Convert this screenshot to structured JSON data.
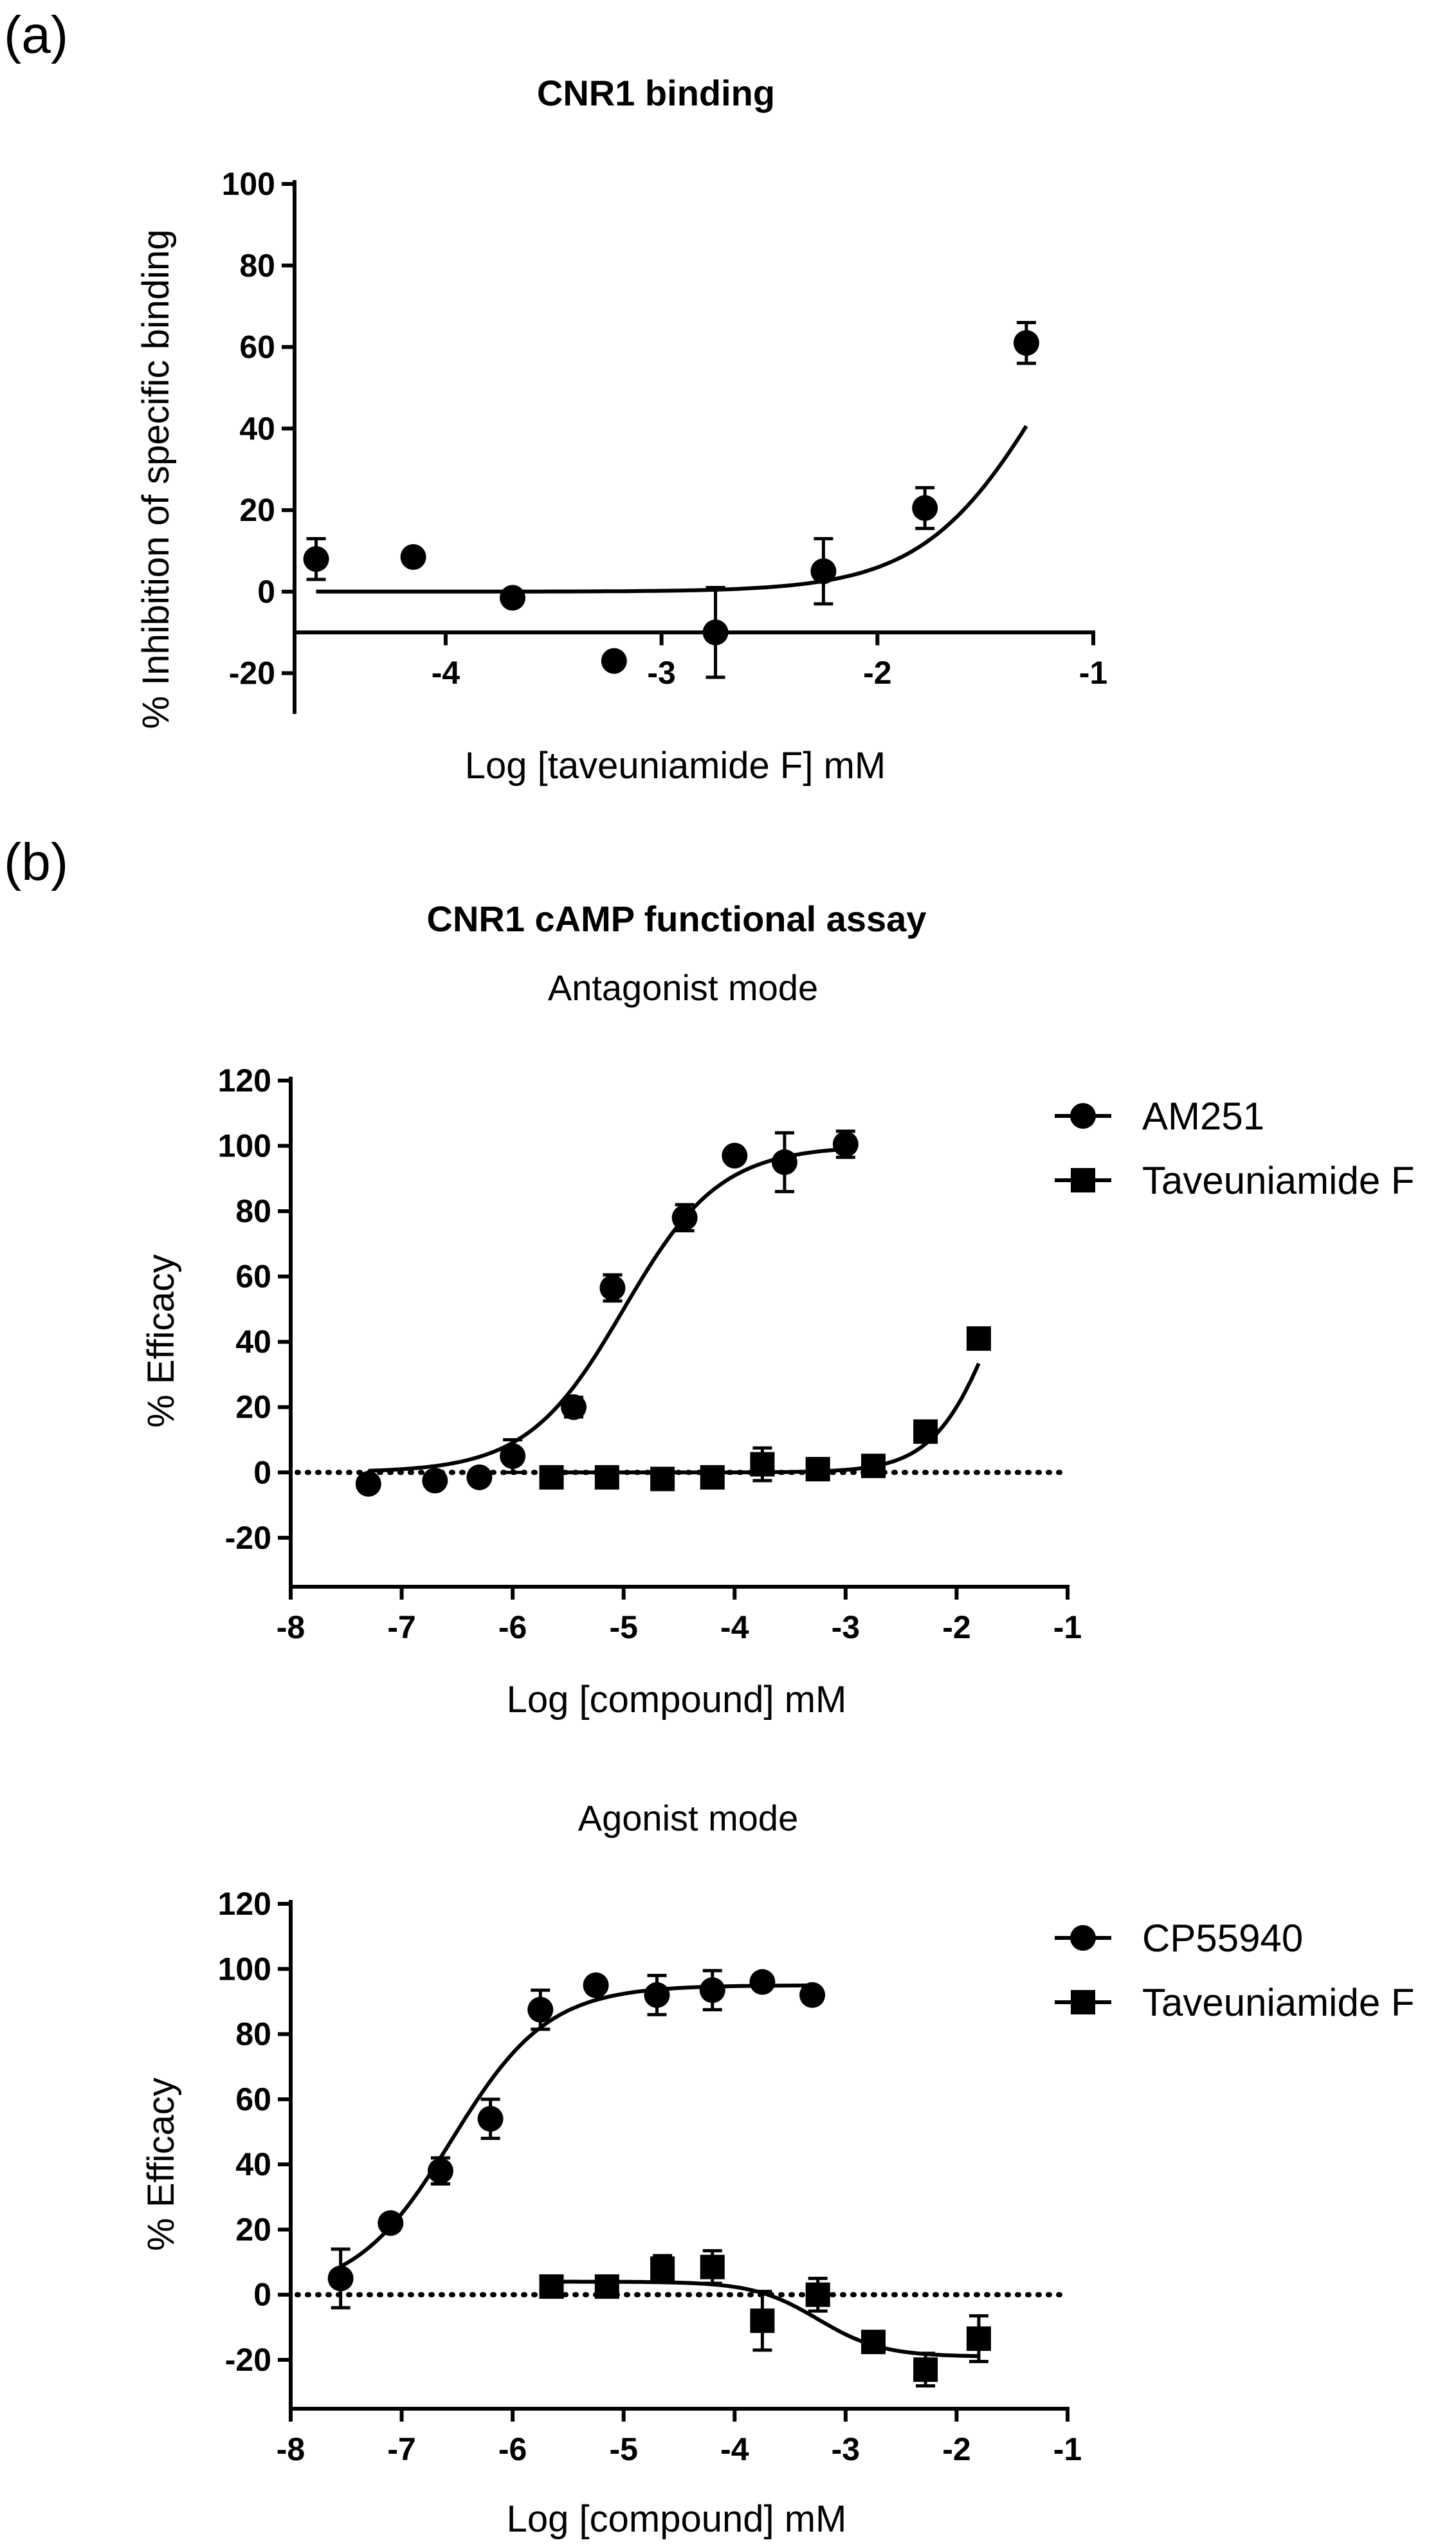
{
  "panel_labels": {
    "a": "(a)",
    "b": "(b)"
  },
  "section_b": {
    "title": "CNR1 cAMP functional assay"
  },
  "chart_data": [
    {
      "id": "binding",
      "type": "scatter",
      "title": "CNR1 binding",
      "subtitle": "",
      "xlabel": "Log [taveuniamide F] mM",
      "ylabel": "% Inhibition of specific binding",
      "xlim": [
        -4.7,
        -1.0
      ],
      "ylim": [
        -30,
        100
      ],
      "xticks": [
        -4,
        -3,
        -2,
        -1
      ],
      "yticks": [
        -20,
        0,
        20,
        40,
        60,
        80,
        100
      ],
      "xaxis_at_y": -10,
      "zero_line": false,
      "legend": [],
      "series": [
        {
          "name": "taveuniamide F",
          "marker": "circle",
          "x": [
            -4.6,
            -4.15,
            -3.69,
            -3.22,
            -2.75,
            -2.25,
            -1.78,
            -1.31
          ],
          "y": [
            8,
            8.5,
            -1.5,
            -17,
            -10,
            5,
            20.5,
            61
          ],
          "err": [
            5,
            0,
            0,
            0,
            11,
            8,
            5,
            5
          ],
          "fit": {
            "bottom": 0,
            "top": 100,
            "logec50": -1.2,
            "hill": 1.5,
            "x_range": [
              -4.6,
              -1.31
            ]
          }
        }
      ]
    },
    {
      "id": "antagonist",
      "type": "scatter",
      "title": "",
      "subtitle": "Antagonist mode",
      "xlabel": "Log [compound] mM",
      "ylabel": "% Efficacy",
      "xlim": [
        -8,
        -1
      ],
      "ylim": [
        -35,
        120
      ],
      "xticks": [
        -8,
        -7,
        -6,
        -5,
        -4,
        -3,
        -2,
        -1
      ],
      "yticks": [
        -20,
        0,
        20,
        40,
        60,
        80,
        100,
        120
      ],
      "xaxis_at_y": -35,
      "zero_line": true,
      "legend": [
        "AM251",
        "Taveuniamide F"
      ],
      "series": [
        {
          "name": "AM251",
          "marker": "circle",
          "x": [
            -7.3,
            -6.7,
            -6.3,
            -6.0,
            -5.45,
            -5.1,
            -4.45,
            -4.0,
            -3.55,
            -3.0
          ],
          "y": [
            -3.5,
            -2.5,
            -1.5,
            5,
            20,
            56.5,
            78,
            97,
            95,
            100.5
          ],
          "err": [
            0,
            0,
            0,
            5,
            3,
            4,
            4,
            0,
            9,
            4
          ],
          "fit": {
            "bottom": 0,
            "top": 100,
            "logec50": -5.0,
            "hill": 1.0,
            "x_range": [
              -7.3,
              -3.0
            ]
          }
        },
        {
          "name": "Taveuniamide F",
          "marker": "square",
          "x": [
            -5.65,
            -5.15,
            -4.65,
            -4.2,
            -3.75,
            -3.25,
            -2.75,
            -2.28,
            -1.8
          ],
          "y": [
            -1.5,
            -1.5,
            -2,
            -1.5,
            2.5,
            1,
            2,
            12.5,
            41
          ],
          "err": [
            0,
            0,
            0,
            3,
            5,
            0,
            3,
            0,
            0
          ],
          "fit": {
            "bottom": 0,
            "top": 100,
            "logec50": -1.6,
            "hill": 1.5,
            "x_range": [
              -5.65,
              -1.8
            ]
          }
        }
      ]
    },
    {
      "id": "agonist",
      "type": "scatter",
      "title": "",
      "subtitle": "Agonist mode",
      "xlabel": "Log [compound] mM",
      "ylabel": "% Efficacy",
      "xlim": [
        -8,
        -1
      ],
      "ylim": [
        -35,
        120
      ],
      "xticks": [
        -8,
        -7,
        -6,
        -5,
        -4,
        -3,
        -2,
        -1
      ],
      "yticks": [
        -20,
        0,
        20,
        40,
        60,
        80,
        100,
        120
      ],
      "xaxis_at_y": -35,
      "zero_line": true,
      "legend": [
        "CP55940",
        "Taveuniamide F"
      ],
      "series": [
        {
          "name": "CP55940",
          "marker": "circle",
          "x": [
            -7.55,
            -7.1,
            -6.65,
            -6.2,
            -5.75,
            -5.25,
            -4.7,
            -4.2,
            -3.75,
            -3.3
          ],
          "y": [
            5,
            22,
            38,
            54,
            87.5,
            95,
            92,
            93.5,
            96,
            92
          ],
          "err": [
            9,
            0,
            4,
            6,
            6,
            0,
            6,
            6,
            0,
            0
          ],
          "fit": {
            "bottom": 0,
            "top": 95,
            "logec50": -6.55,
            "hill": 1.0,
            "x_range": [
              -7.55,
              -3.3
            ]
          }
        },
        {
          "name": "Taveuniamide F",
          "marker": "square",
          "x": [
            -5.65,
            -5.15,
            -4.65,
            -4.2,
            -3.75,
            -3.25,
            -2.75,
            -2.28,
            -1.8
          ],
          "y": [
            2.5,
            2.5,
            8,
            8.5,
            -8,
            0,
            -14.5,
            -23,
            -13.5
          ],
          "err": [
            0,
            0,
            4,
            5,
            9,
            5,
            0,
            5,
            7
          ],
          "fit": {
            "bottom": 4,
            "top": -19,
            "logec50": -3.25,
            "hill": 1.5,
            "x_range": [
              -5.65,
              -1.8
            ]
          }
        }
      ]
    }
  ]
}
